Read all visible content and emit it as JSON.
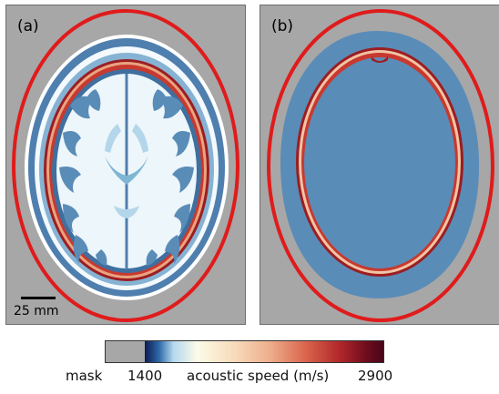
{
  "panels": {
    "a": {
      "label": "(a)"
    },
    "b": {
      "label": "(b)"
    }
  },
  "scale_bar": {
    "label": "25 mm"
  },
  "colorbar": {
    "mask_label": "mask",
    "min_label": "1400",
    "max_label": "2900",
    "title": "acoustic speed (m/s)"
  },
  "colors": {
    "background_mask": "#a7a7a7",
    "outline_ellipse": "#e01b1b",
    "soft_tissue": "#5a8cb8",
    "brain_light": "#eef7fb",
    "skull": "#c0302a"
  }
}
